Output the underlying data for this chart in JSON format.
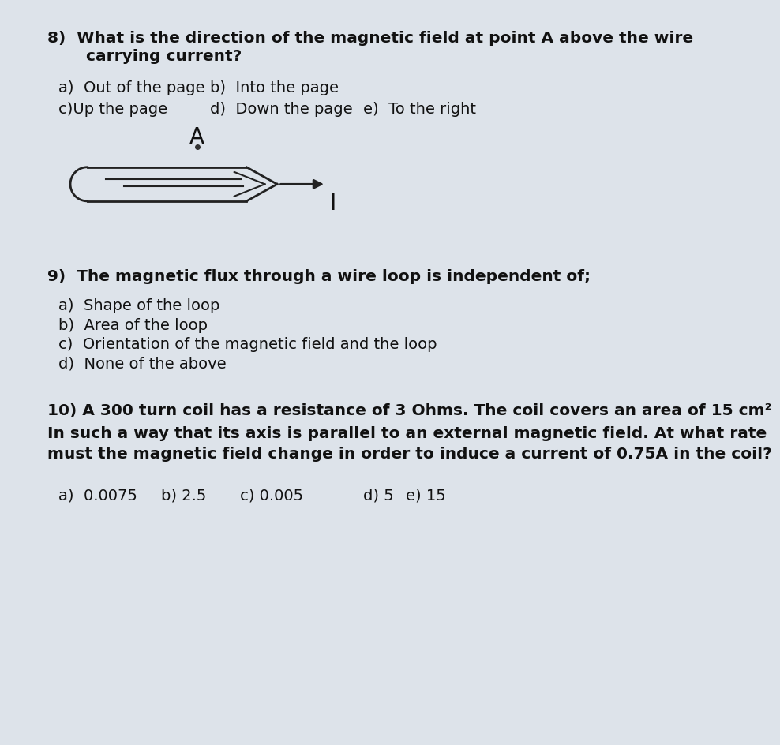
{
  "bg_color": "#dde3ea",
  "text_color": "#1a1a1a",
  "q8_line1": "8)  What is the direction of the magnetic field at point A above the wire",
  "q8_line2": "     carrying current?",
  "q8_a": "a)  Out of the page",
  "q8_b": "b)  Into the page",
  "q8_c": "c)Up the page",
  "q8_d": "d)  Down the page",
  "q8_e": "e)  To the right",
  "q9_title": "9)  The magnetic flux through a wire loop is independent of;",
  "q9_a": "a)  Shape of the loop",
  "q9_b": "b)  Area of the loop",
  "q9_c": "c)  Orientation of the magnetic field and the loop",
  "q9_d": "d)  None of the above",
  "q10_line1": "10) A 300 turn coil has a resistance of 3 Ohms. The coil covers an area of 15 cm²",
  "q10_line2": "In such a way that its axis is parallel to an external magnetic field. At what rate",
  "q10_line3": "must the magnetic field change in order to induce a current of 0.75A in the coil?",
  "q10_a": "a)  0.0075",
  "q10_b": "b) 2.5",
  "q10_c": "c) 0.005",
  "q10_d": "d) 5",
  "q10_e": "e) 15"
}
